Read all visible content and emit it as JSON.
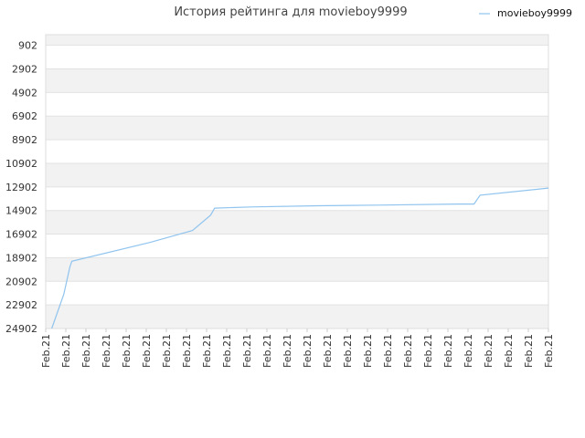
{
  "chart_data": {
    "type": "line",
    "title": "История рейтинга для movieboy9999",
    "xlabel": "",
    "ylabel": "",
    "y_inverted": true,
    "ylim": [
      24902,
      0
    ],
    "y_ticks": [
      902,
      2902,
      4902,
      6902,
      8902,
      10902,
      12902,
      14902,
      16902,
      18902,
      20902,
      22902,
      24902
    ],
    "x_tick_labels": [
      "Feb.21",
      "Feb.21",
      "Feb.21",
      "Feb.21",
      "Feb.21",
      "Feb.21",
      "Feb.21",
      "Feb.21",
      "Feb.21",
      "Feb.21",
      "Feb.21",
      "Feb.21",
      "Feb.21",
      "Feb.21",
      "Feb.21",
      "Feb.21",
      "Feb.21",
      "Feb.21",
      "Feb.21",
      "Feb.21",
      "Feb.21",
      "Feb.21",
      "Feb.21",
      "Feb.21",
      "Feb.21",
      "Feb.21"
    ],
    "grid": true,
    "legend": "top-right",
    "series": [
      {
        "name": "movieboy9999",
        "color": "#90c4ee",
        "x": [
          0.3,
          0.9,
          1.2,
          1.3,
          5.2,
          7.3,
          8.2,
          8.4,
          10.2,
          13.5,
          16.5,
          20.5,
          21.3,
          21.6,
          25.0
        ],
        "y": [
          24902,
          22000,
          19700,
          19200,
          17600,
          16600,
          15300,
          14700,
          14600,
          14500,
          14450,
          14350,
          14350,
          13600,
          13000
        ]
      }
    ]
  }
}
